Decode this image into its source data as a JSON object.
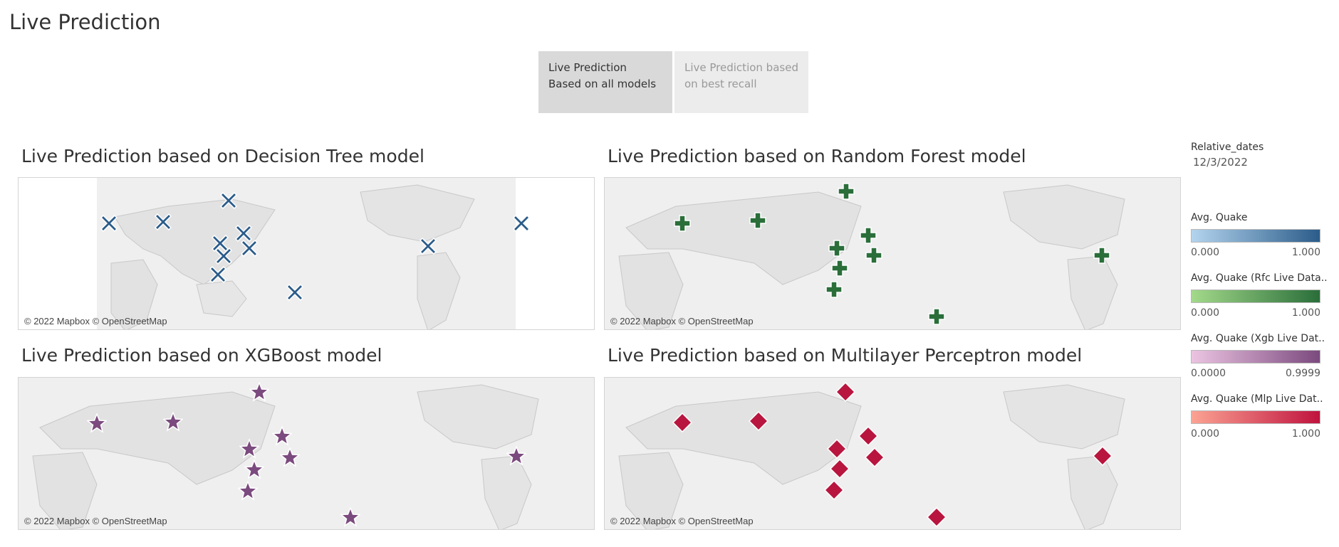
{
  "page": {
    "title": "Live Prediction"
  },
  "tabs": [
    {
      "label": "Live Prediction Based on all models",
      "active": true
    },
    {
      "label": "Live Prediction based on best recall",
      "active": false
    }
  ],
  "attribution": "© 2022 Mapbox © OpenStreetMap",
  "panels": [
    {
      "title": "Live Prediction based on Decision Tree model",
      "marker": "cross-icon",
      "color": "#2b5c8a"
    },
    {
      "title": "Live Prediction based on Random Forest model",
      "marker": "plus-icon",
      "color": "#2a6e3a"
    },
    {
      "title": "Live Prediction based on XGBoost model",
      "marker": "star-icon",
      "color": "#7b4a7e"
    },
    {
      "title": "Live Prediction based on Multilayer Perceptron model",
      "marker": "diamond-icon",
      "color": "#b8163f"
    }
  ],
  "sidebar": {
    "date_filter": {
      "label": "Relative_dates",
      "value": "12/3/2022"
    },
    "legends": [
      {
        "title": "Avg. Quake",
        "min": "0.000",
        "max": "1.000",
        "from": "#b3d4ee",
        "to": "#2b5c8a"
      },
      {
        "title": "Avg. Quake (Rfc Live Data..",
        "min": "0.000",
        "max": "1.000",
        "from": "#a3d98a",
        "to": "#2a6e3a"
      },
      {
        "title": "Avg. Quake (Xgb Live Dat..",
        "min": "0.0000",
        "max": "0.9999",
        "from": "#ecc4e2",
        "to": "#7b4a7e"
      },
      {
        "title": "Avg. Quake (Mlp Live Dat..",
        "min": "0.000",
        "max": "1.000",
        "from": "#fba393",
        "to": "#c0133e"
      }
    ]
  }
}
